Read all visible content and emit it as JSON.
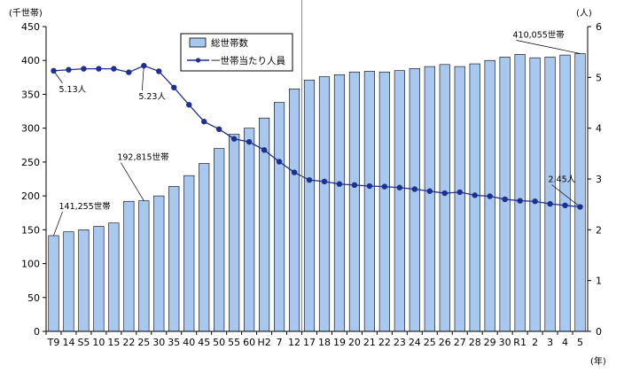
{
  "chart_data": {
    "type": "bar",
    "categories": [
      "T9",
      "14",
      "S5",
      "10",
      "15",
      "22",
      "25",
      "30",
      "35",
      "40",
      "45",
      "50",
      "55",
      "60",
      "H2",
      "7",
      "12",
      "17",
      "18",
      "19",
      "20",
      "21",
      "22",
      "23",
      "24",
      "25",
      "26",
      "27",
      "28",
      "29",
      "30",
      "R1",
      "2",
      "3",
      "4",
      "5"
    ],
    "y_left": {
      "unit": "(千世帯)",
      "ylim": [
        0,
        450
      ],
      "ticks": [
        0,
        50,
        100,
        150,
        200,
        250,
        300,
        350,
        400,
        450
      ]
    },
    "y_right": {
      "unit": "(人)",
      "ylim": [
        0,
        6
      ],
      "ticks": [
        0,
        1,
        2,
        3,
        4,
        5,
        6
      ]
    },
    "x_unit": "(年)",
    "series": [
      {
        "name": "総世帯数",
        "type": "bar",
        "axis": "left",
        "color": "#a9c8ef",
        "values": [
          141.3,
          147,
          150,
          155,
          160,
          192,
          192.8,
          200,
          214,
          230,
          248,
          270,
          291,
          300,
          315,
          338,
          358,
          371,
          376,
          379,
          383,
          384,
          383,
          385,
          388,
          391,
          394,
          391,
          395,
          400,
          405,
          409,
          404,
          405,
          408,
          410.1
        ]
      },
      {
        "name": "一世帯当たり人員",
        "type": "line",
        "axis": "right",
        "color": "#1f2f8f",
        "values": [
          5.13,
          5.15,
          5.17,
          5.17,
          5.17,
          5.1,
          5.23,
          5.12,
          4.8,
          4.46,
          4.13,
          3.98,
          3.79,
          3.73,
          3.57,
          3.34,
          3.13,
          2.98,
          2.95,
          2.9,
          2.88,
          2.86,
          2.85,
          2.83,
          2.8,
          2.76,
          2.72,
          2.74,
          2.68,
          2.66,
          2.6,
          2.57,
          2.56,
          2.51,
          2.48,
          2.45
        ]
      }
    ],
    "annotations": [
      {
        "text": "141,255世帯",
        "index": 0,
        "series": "総世帯数"
      },
      {
        "text": "192,815世帯",
        "index": 6,
        "series": "総世帯数"
      },
      {
        "text": "410,055世帯",
        "index": 35,
        "series": "総世帯数"
      },
      {
        "text": "5.13人",
        "index": 0,
        "series": "一世帯当たり人員"
      },
      {
        "text": "5.23人",
        "index": 6,
        "series": "一世帯当たり人員"
      },
      {
        "text": "2.45人",
        "index": 35,
        "series": "一世帯当たり人員"
      }
    ],
    "grid": false,
    "legend": "top-center",
    "divider_after_category": "12"
  }
}
